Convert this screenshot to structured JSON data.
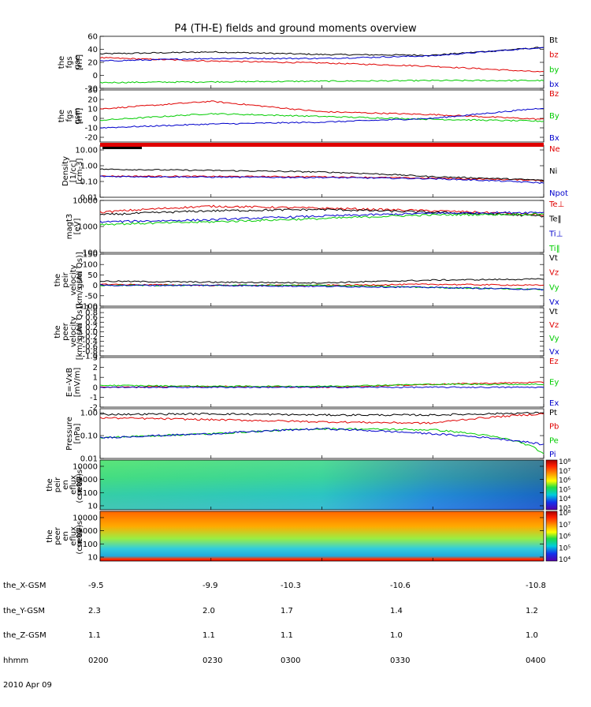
{
  "title": "P4 (TH-E) fields and ground moments overview",
  "colors": {
    "black": "#000000",
    "red": "#e00000",
    "green": "#00cc00",
    "blue": "#0000cc"
  },
  "panels": [
    {
      "id": "fgs-gse",
      "ylabel": [
        "the",
        "fgs",
        "gse",
        "[nT]"
      ],
      "ticks": [
        "60",
        "40",
        "20",
        "0",
        "-20"
      ],
      "tickvals": [
        60,
        40,
        20,
        0,
        -20
      ],
      "ylim": [
        -20,
        60
      ],
      "legend": [
        {
          "label": "Bt",
          "color": "black"
        },
        {
          "label": "bz",
          "color": "red"
        },
        {
          "label": "by",
          "color": "green"
        },
        {
          "label": "bx",
          "color": "blue"
        }
      ]
    },
    {
      "id": "fgs-gsm",
      "ylabel": [
        "the",
        "fgs",
        "gsm",
        "[nT]"
      ],
      "ticks": [
        "30",
        "20",
        "10",
        "0",
        "-10",
        "-20"
      ],
      "tickvals": [
        30,
        20,
        10,
        0,
        -10,
        -20
      ],
      "ylim": [
        -25,
        30
      ],
      "legend": [
        {
          "label": "Bz",
          "color": "red"
        },
        {
          "label": "By",
          "color": "green"
        },
        {
          "label": "Bx",
          "color": "blue"
        }
      ]
    },
    {
      "id": "density",
      "ylabel": [
        "Density",
        "[1/cc]",
        "[cm-3]"
      ],
      "ticks": [
        "10.00",
        "1.00",
        "0.10",
        "0.01"
      ],
      "tickvals": [
        10,
        1,
        0.1,
        0.01
      ],
      "ylim": [
        0.01,
        20
      ],
      "log": true,
      "legend": [
        {
          "label": "Ne",
          "color": "red"
        },
        {
          "label": "Ni",
          "color": "black"
        },
        {
          "label": "Npot",
          "color": "blue"
        }
      ]
    },
    {
      "id": "temperature",
      "ylabel": [
        "magt3",
        "[eV]"
      ],
      "ticks": [
        "10000",
        "1000",
        "100"
      ],
      "tickvals": [
        10000,
        1000,
        100
      ],
      "ylim": [
        100,
        10000
      ],
      "log": true,
      "legend": [
        {
          "label": "Te⊥",
          "color": "red"
        },
        {
          "label": "Te‖",
          "color": "black"
        },
        {
          "label": "Ti⊥",
          "color": "blue"
        },
        {
          "label": "Ti‖",
          "color": "green"
        }
      ]
    },
    {
      "id": "velocity-full",
      "ylabel": [
        "the",
        "peir",
        "velocity",
        "gsm",
        "[km/s (All Qs)]"
      ],
      "ticks": [
        "150",
        "100",
        "50",
        "0",
        "-50",
        "-100"
      ],
      "tickvals": [
        150,
        100,
        50,
        0,
        -50,
        -100
      ],
      "ylim": [
        -100,
        150
      ],
      "legend": [
        {
          "label": "Vt",
          "color": "black"
        },
        {
          "label": "Vz",
          "color": "red"
        },
        {
          "label": "Vy",
          "color": "green"
        },
        {
          "label": "Vx",
          "color": "blue"
        }
      ]
    },
    {
      "id": "velocity-empty",
      "ylabel": [
        "the",
        "peer",
        "velocity",
        "gsm",
        "[km/s (All Qs)]"
      ],
      "ticks": [
        "1.0",
        "0.8",
        "0.6",
        "0.4",
        "0.2",
        "0.0",
        "-0.2",
        "-0.4",
        "-0.6",
        "-0.8",
        "-1.0"
      ],
      "tickvals": [
        1,
        0.8,
        0.6,
        0.4,
        0.2,
        0,
        -0.2,
        -0.4,
        -0.6,
        -0.8,
        -1
      ],
      "ylim": [
        -1,
        1
      ],
      "legend": [
        {
          "label": "Vt",
          "color": "black"
        },
        {
          "label": "Vz",
          "color": "red"
        },
        {
          "label": "Vy",
          "color": "green"
        },
        {
          "label": "Vx",
          "color": "blue"
        }
      ]
    },
    {
      "id": "efield",
      "ylabel": [
        "E=-VxB",
        "[mV/m]"
      ],
      "ticks": [
        "3",
        "2",
        "1",
        "0",
        "-1",
        "-2"
      ],
      "tickvals": [
        3,
        2,
        1,
        0,
        -1,
        -2
      ],
      "ylim": [
        -2,
        3
      ],
      "legend": [
        {
          "label": "Ez",
          "color": "red"
        },
        {
          "label": "Ey",
          "color": "green"
        },
        {
          "label": "Ex",
          "color": "blue"
        }
      ]
    },
    {
      "id": "pressure",
      "ylabel": [
        "Pressure",
        "[nPa]"
      ],
      "ticks": [
        "1.00",
        "0.10",
        "0.01"
      ],
      "tickvals": [
        1,
        0.1,
        0.01
      ],
      "ylim": [
        0.01,
        1.5
      ],
      "log": true,
      "legend": [
        {
          "label": "Pt",
          "color": "black"
        },
        {
          "label": "Pb",
          "color": "red"
        },
        {
          "label": "Pe",
          "color": "green"
        },
        {
          "label": "Pi",
          "color": "blue"
        }
      ]
    },
    {
      "id": "ion-eflux",
      "ylabel": [
        "the",
        "peir",
        "en",
        "eflux",
        "eV/",
        "(cm^2-s-",
        "sr-eV)"
      ],
      "ticks": [
        "10000",
        "1000",
        "100",
        "10"
      ],
      "tickvals": [
        10000,
        1000,
        100,
        10
      ],
      "ylim": [
        5,
        30000
      ],
      "log": true,
      "colorbar": [
        "10⁸",
        "10⁷",
        "10⁶",
        "10⁵",
        "10⁴",
        "10³"
      ]
    },
    {
      "id": "electron-eflux",
      "ylabel": [
        "the",
        "peer",
        "en",
        "eflux",
        "eV/",
        "(cm^2-s-",
        "sr-eV)"
      ],
      "ticks": [
        "10000",
        "1000",
        "100",
        "10"
      ],
      "tickvals": [
        10000,
        1000,
        100,
        10
      ],
      "ylim": [
        5,
        30000
      ],
      "log": true,
      "colorbar": [
        "10⁸",
        "10⁷",
        "10⁶",
        "10⁵",
        "10⁴"
      ]
    }
  ],
  "chart_data": {
    "type": "line",
    "title": "P4 (TH-E) fields and ground moments overview",
    "x": [
      "0200",
      "0230",
      "0300",
      "0330",
      "0400"
    ],
    "series": [
      {
        "name": "Bt",
        "panel": "fgs-gse",
        "values": [
          33,
          36,
          32,
          31,
          43
        ]
      },
      {
        "name": "bz",
        "panel": "fgs-gse",
        "values": [
          27,
          22,
          19,
          14,
          5
        ]
      },
      {
        "name": "by",
        "panel": "fgs-gse",
        "values": [
          -11,
          -10,
          -9,
          -8,
          -8
        ]
      },
      {
        "name": "bx",
        "panel": "fgs-gse",
        "values": [
          22,
          26,
          26,
          30,
          43
        ]
      },
      {
        "name": "Bz",
        "panel": "fgs-gsm",
        "values": [
          10,
          18,
          7,
          4,
          -1
        ]
      },
      {
        "name": "By",
        "panel": "fgs-gsm",
        "values": [
          -2,
          5,
          2,
          -1,
          -3
        ]
      },
      {
        "name": "Bx",
        "panel": "fgs-gsm",
        "values": [
          -10,
          -6,
          -4,
          0,
          11
        ]
      },
      {
        "name": "Ne",
        "panel": "density",
        "values": [
          0.22,
          0.21,
          0.2,
          0.16,
          0.12
        ]
      },
      {
        "name": "Ni",
        "panel": "density",
        "values": [
          0.6,
          0.5,
          0.4,
          0.2,
          0.12
        ]
      },
      {
        "name": "Npot",
        "panel": "density",
        "values": [
          0.21,
          0.19,
          0.18,
          0.15,
          0.08
        ]
      },
      {
        "name": "Te⊥",
        "panel": "temperature",
        "values": [
          3500,
          6000,
          5000,
          4000,
          2800
        ]
      },
      {
        "name": "Te‖",
        "panel": "temperature",
        "values": [
          2800,
          4000,
          4500,
          3500,
          2500
        ]
      },
      {
        "name": "Ti⊥",
        "panel": "temperature",
        "values": [
          1500,
          1800,
          2500,
          3200,
          3500
        ]
      },
      {
        "name": "Ti‖",
        "panel": "temperature",
        "values": [
          1200,
          1500,
          2000,
          2800,
          3000
        ]
      },
      {
        "name": "Vt",
        "panel": "velocity-full",
        "values": [
          20,
          15,
          12,
          25,
          30
        ]
      },
      {
        "name": "Vz",
        "panel": "velocity-full",
        "values": [
          5,
          0,
          0,
          5,
          0
        ]
      },
      {
        "name": "Vy",
        "panel": "velocity-full",
        "values": [
          0,
          0,
          0,
          -10,
          -20
        ]
      },
      {
        "name": "Vx",
        "panel": "velocity-full",
        "values": [
          0,
          0,
          -5,
          -10,
          -20
        ]
      },
      {
        "name": "Ez",
        "panel": "efield",
        "values": [
          0,
          0.1,
          0,
          0.3,
          0.5
        ]
      },
      {
        "name": "Ey",
        "panel": "efield",
        "values": [
          0.2,
          0.1,
          0.1,
          0.3,
          0.3
        ]
      },
      {
        "name": "Ex",
        "panel": "efield",
        "values": [
          0,
          0,
          0,
          0,
          0
        ]
      },
      {
        "name": "Pt",
        "panel": "pressure",
        "values": [
          0.85,
          0.9,
          0.8,
          0.8,
          1.0
        ]
      },
      {
        "name": "Pb",
        "panel": "pressure",
        "values": [
          0.6,
          0.5,
          0.4,
          0.35,
          0.9
        ]
      },
      {
        "name": "Pe",
        "panel": "pressure",
        "values": [
          0.08,
          0.12,
          0.2,
          0.18,
          0.015
        ]
      },
      {
        "name": "Pi",
        "panel": "pressure",
        "values": [
          0.08,
          0.12,
          0.2,
          0.12,
          0.04
        ]
      }
    ]
  },
  "footer": {
    "labels": [
      "the_X-GSM",
      "the_Y-GSM",
      "the_Z-GSM",
      "hhmm",
      "2010 Apr 09"
    ],
    "columns": [
      [
        "-9.5",
        "2.3",
        "1.1",
        "0200"
      ],
      [
        "-9.9",
        "2.0",
        "1.1",
        "0230"
      ],
      [
        "-10.3",
        "1.7",
        "1.1",
        "0300"
      ],
      [
        "-10.6",
        "1.4",
        "1.0",
        "0330"
      ],
      [
        "-10.8",
        "1.2",
        "1.0",
        "0400"
      ]
    ]
  }
}
